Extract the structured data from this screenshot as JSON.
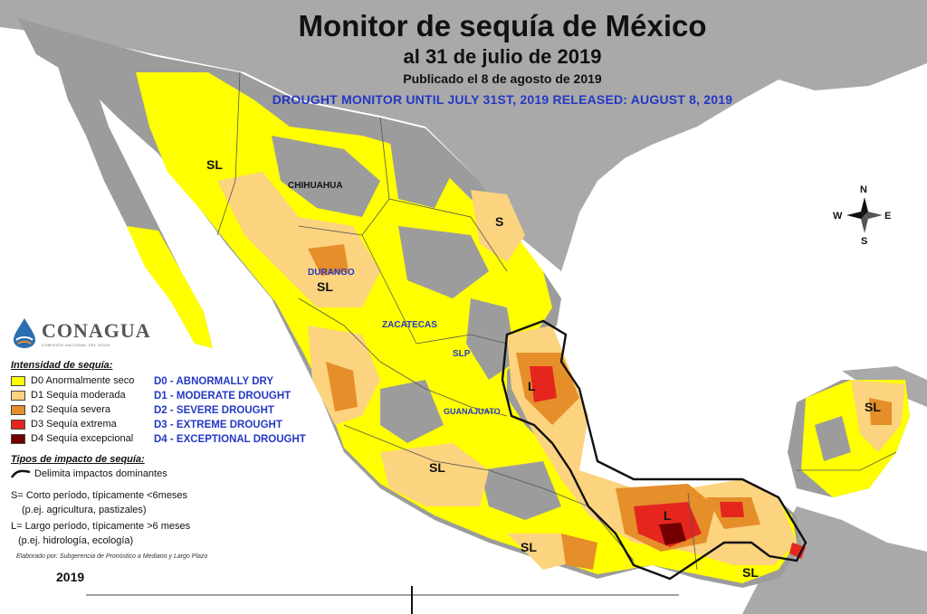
{
  "header": {
    "title": "Monitor de sequía de México",
    "date_line": "al 31 de julio de 2019",
    "published": "Publicado el 8 de agosto de 2019",
    "english_line": "DROUGHT MONITOR UNTIL JULY 31ST, 2019 RELEASED: AUGUST 8, 2019"
  },
  "logo": {
    "name": "CONAGUA",
    "subtitle": "COMISIÓN NACIONAL DEL AGUA"
  },
  "legend": {
    "heading": "Intensidad de sequía:",
    "items": [
      {
        "label": "D0 Anormalmente seco",
        "english": "D0 - ABNORMALLY DRY",
        "color": "#ffff00"
      },
      {
        "label": "D1 Sequía moderada",
        "english": "D1 - MODERATE DROUGHT",
        "color": "#fcd37f"
      },
      {
        "label": "D2 Sequía severa",
        "english": "D2 - SEVERE DROUGHT",
        "color": "#e58e2a"
      },
      {
        "label": "D3 Sequía extrema",
        "english": "D3 - EXTREME DROUGHT",
        "color": "#e4261e"
      },
      {
        "label": "D4 Sequía excepcional",
        "english": "D4 - EXCEPTIONAL DROUGHT",
        "color": "#730000"
      }
    ]
  },
  "impacts": {
    "heading": "Tipos de impacto de sequía:",
    "boundary": "Delimita impactos dominantes",
    "short_term": "S= Corto período, típicamente <6meses",
    "short_term_example": "(p.ej. agricultura, pastizales)",
    "long_term": "L= Largo período, típicamente >6 meses",
    "long_term_example": "(p.ej. hidrología, ecología)"
  },
  "credit": "Elaborado por: Subgerencia de Pronóstico a Mediano y Largo Plazo",
  "timeline_year": "2019",
  "compass": {
    "n": "N",
    "s": "S",
    "e": "E",
    "w": "W"
  },
  "states": {
    "chihuahua": "CHIHUAHUA",
    "durango": "DURANGO",
    "zacatecas": "ZACATECAS",
    "slp": "SLP",
    "guanajuato": "GUANAJUATO"
  },
  "impact_labels": {
    "sonora": "SL",
    "tamaulipas": "S",
    "durango": "SL",
    "jalisco": "SL",
    "veracruz_north": "L",
    "veracruz_south": "L",
    "guerrero": "SL",
    "chiapas": "SL",
    "yucatan": "SL"
  }
}
